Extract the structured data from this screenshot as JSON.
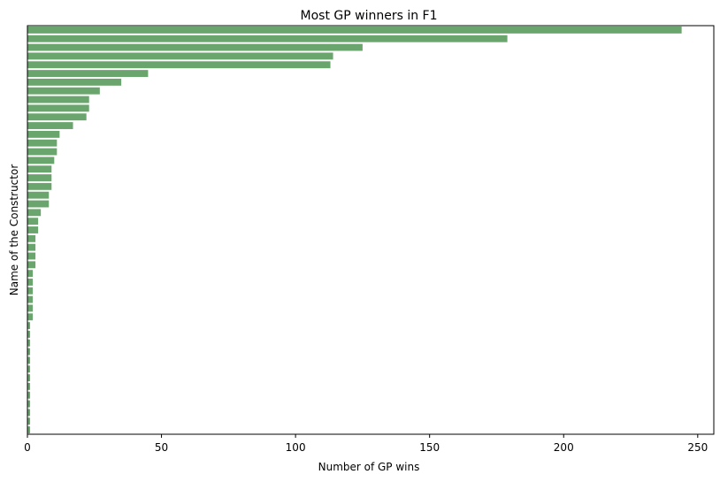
{
  "chart_data": {
    "type": "bar",
    "orientation": "horizontal",
    "title": "Most GP winners in F1",
    "xlabel": "Number of GP wins",
    "ylabel": "Name of the Constructor",
    "xlim": [
      0,
      256
    ],
    "xticks": [
      0,
      50,
      100,
      150,
      200,
      250
    ],
    "grid": false,
    "bar_color": "#6aa56d",
    "values": [
      244,
      179,
      125,
      114,
      113,
      45,
      35,
      27,
      23,
      23,
      22,
      17,
      12,
      11,
      11,
      10,
      9,
      9,
      9,
      8,
      8,
      5,
      4,
      4,
      3,
      3,
      3,
      3,
      2,
      2,
      2,
      2,
      2,
      2,
      1,
      1,
      1,
      1,
      1,
      1,
      1,
      1,
      1,
      1,
      1,
      1,
      1
    ]
  }
}
